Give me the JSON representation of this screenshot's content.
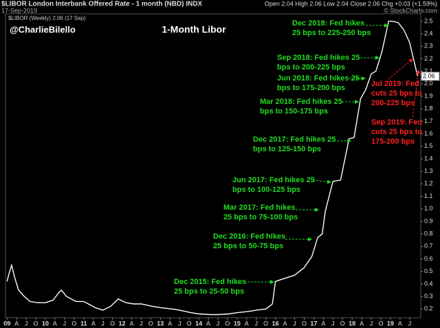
{
  "chart_data": {
    "type": "line",
    "title": "1-Month Libor",
    "symbol_header": "$LIBOR London Interbank Offered Rate - 1 month (NBD) INDX",
    "date": "17-Sep-2019",
    "quote": "Open 2.04 High 2.06 Low 2.04 Close 2.06 Chg +0.03 (+1.59%)",
    "source": "© StockCharts.com",
    "author": "@CharlieBilello",
    "x": [
      2009.0,
      2009.05,
      2009.12,
      2009.2,
      2009.3,
      2009.45,
      2009.6,
      2009.8,
      2010.0,
      2010.2,
      2010.35,
      2010.42,
      2010.55,
      2010.8,
      2011.0,
      2011.3,
      2011.5,
      2011.7,
      2011.9,
      2012.1,
      2012.3,
      2012.5,
      2012.8,
      2013.0,
      2013.3,
      2013.5,
      2013.8,
      2014.0,
      2014.3,
      2014.5,
      2014.8,
      2015.0,
      2015.3,
      2015.5,
      2015.75,
      2015.92,
      2016.0,
      2016.2,
      2016.5,
      2016.75,
      2016.95,
      2017.1,
      2017.22,
      2017.3,
      2017.5,
      2017.7,
      2017.92,
      2018.05,
      2018.22,
      2018.35,
      2018.5,
      2018.62,
      2018.78,
      2018.95,
      2019.05,
      2019.2,
      2019.35,
      2019.5,
      2019.6,
      2019.71
    ],
    "series": [
      {
        "name": "$LIBOR (Weekly) 2.06 (17 Sep)",
        "color": "#ffffff",
        "values": [
          0.42,
          0.48,
          0.55,
          0.45,
          0.35,
          0.3,
          0.26,
          0.25,
          0.25,
          0.27,
          0.33,
          0.35,
          0.3,
          0.26,
          0.26,
          0.21,
          0.19,
          0.22,
          0.28,
          0.25,
          0.24,
          0.24,
          0.22,
          0.21,
          0.2,
          0.19,
          0.17,
          0.16,
          0.155,
          0.155,
          0.16,
          0.17,
          0.18,
          0.19,
          0.2,
          0.24,
          0.42,
          0.44,
          0.47,
          0.53,
          0.62,
          0.77,
          0.8,
          0.98,
          1.22,
          1.23,
          1.56,
          1.57,
          1.88,
          1.95,
          2.08,
          2.1,
          2.26,
          2.5,
          2.5,
          2.49,
          2.43,
          2.33,
          2.2,
          2.06
        ],
        "value_labels": [
          null,
          null,
          null,
          null,
          null,
          null,
          null,
          null,
          null,
          null,
          null,
          null,
          null,
          null,
          null,
          null,
          null,
          null,
          null,
          null,
          null,
          null,
          null,
          null,
          null,
          null,
          null,
          null,
          null,
          null,
          null,
          null,
          null,
          null,
          null,
          null,
          null,
          null,
          null,
          null,
          null,
          null,
          null,
          null,
          null,
          null,
          null,
          null,
          null,
          null,
          null,
          null,
          null,
          null,
          null,
          null,
          null,
          null,
          null,
          "2.06"
        ]
      }
    ],
    "xlim": [
      2008.96,
      2019.79
    ],
    "ylim": [
      0.13,
      2.56
    ],
    "yticks": [
      0.2,
      0.3,
      0.4,
      0.5,
      0.6,
      0.7,
      0.8,
      0.9,
      {
        "value": 1,
        "label": "1.0"
      },
      1.1,
      1.2,
      1.3,
      1.4,
      1.5,
      1.6,
      1.7,
      1.8,
      1.9,
      {
        "value": 2,
        "label": "2.0"
      },
      2.1,
      2.2,
      2.3,
      2.4,
      2.5
    ],
    "xticks": [
      {
        "value": 2009,
        "label": "09"
      },
      {
        "value": 2009.25,
        "label": "A"
      },
      {
        "value": 2009.5,
        "label": "J"
      },
      {
        "value": 2009.75,
        "label": "O"
      },
      {
        "value": 2010,
        "label": "10"
      },
      {
        "value": 2010.25,
        "label": "A"
      },
      {
        "value": 2010.5,
        "label": "J"
      },
      {
        "value": 2010.75,
        "label": "O"
      },
      {
        "value": 2011,
        "label": "11"
      },
      {
        "value": 2011.25,
        "label": "A"
      },
      {
        "value": 2011.5,
        "label": "J"
      },
      {
        "value": 2011.75,
        "label": "O"
      },
      {
        "value": 2012,
        "label": "12"
      },
      {
        "value": 2012.25,
        "label": "A"
      },
      {
        "value": 2012.5,
        "label": "J"
      },
      {
        "value": 2012.75,
        "label": "O"
      },
      {
        "value": 2013,
        "label": "13"
      },
      {
        "value": 2013.25,
        "label": "A"
      },
      {
        "value": 2013.5,
        "label": "J"
      },
      {
        "value": 2013.75,
        "label": "O"
      },
      {
        "value": 2014,
        "label": "14"
      },
      {
        "value": 2014.25,
        "label": "A"
      },
      {
        "value": 2014.5,
        "label": "J"
      },
      {
        "value": 2014.75,
        "label": "O"
      },
      {
        "value": 2015,
        "label": "15"
      },
      {
        "value": 2015.25,
        "label": "A"
      },
      {
        "value": 2015.5,
        "label": "J"
      },
      {
        "value": 2015.75,
        "label": "O"
      },
      {
        "value": 2016,
        "label": "16"
      },
      {
        "value": 2016.25,
        "label": "A"
      },
      {
        "value": 2016.5,
        "label": "J"
      },
      {
        "value": 2016.75,
        "label": "O"
      },
      {
        "value": 2017,
        "label": "17"
      },
      {
        "value": 2017.25,
        "label": "A"
      },
      {
        "value": 2017.5,
        "label": "J"
      },
      {
        "value": 2017.75,
        "label": "O"
      },
      {
        "value": 2018,
        "label": "18"
      },
      {
        "value": 2018.25,
        "label": "A"
      },
      {
        "value": 2018.5,
        "label": "J"
      },
      {
        "value": 2018.75,
        "label": "O"
      },
      {
        "value": 2019,
        "label": "19"
      },
      {
        "value": 2019.25,
        "label": "A"
      },
      {
        "value": 2019.5,
        "label": "J"
      }
    ],
    "annotations": [
      {
        "lines": [
          "Dec 2015: Fed hikes",
          "25 bps to 25-50 bps"
        ],
        "color": "#22dd22"
      },
      {
        "lines": [
          "Dec 2016: Fed hikes",
          "25 bps to 50-75 bps"
        ],
        "color": "#22dd22"
      },
      {
        "lines": [
          "Mar 2017: Fed hikes",
          "25 bps to 75-100 bps"
        ],
        "color": "#22dd22"
      },
      {
        "lines": [
          "Jun 2017: Fed hikes 25",
          "bps to 100-125 bps"
        ],
        "color": "#22dd22"
      },
      {
        "lines": [
          "Dec 2017: Fed hikes 25",
          "bps to 125-150 bps"
        ],
        "color": "#22dd22"
      },
      {
        "lines": [
          "Mar 2018: Fed hikes 25",
          "bps to 150-175 bps"
        ],
        "color": "#22dd22"
      },
      {
        "lines": [
          "Jun 2018: Fed hikes 25",
          "bps to 175-200 bps"
        ],
        "color": "#22dd22"
      },
      {
        "lines": [
          "Sep 2018: Fed hikes 25",
          "bps to 200-225 bps"
        ],
        "color": "#22dd22"
      },
      {
        "lines": [
          "Dec 2018: Fed hikes",
          "25 bps to 225-250 bps"
        ],
        "color": "#22dd22"
      },
      {
        "lines": [
          "Jul 2019: Fed",
          "cuts 25 bps to",
          "200-225 bps"
        ],
        "color": "#ff2020"
      },
      {
        "lines": [
          "Sep 2019: Fed",
          "cuts 25 bps to",
          "175-200 bps"
        ],
        "color": "#ff2020"
      }
    ]
  }
}
